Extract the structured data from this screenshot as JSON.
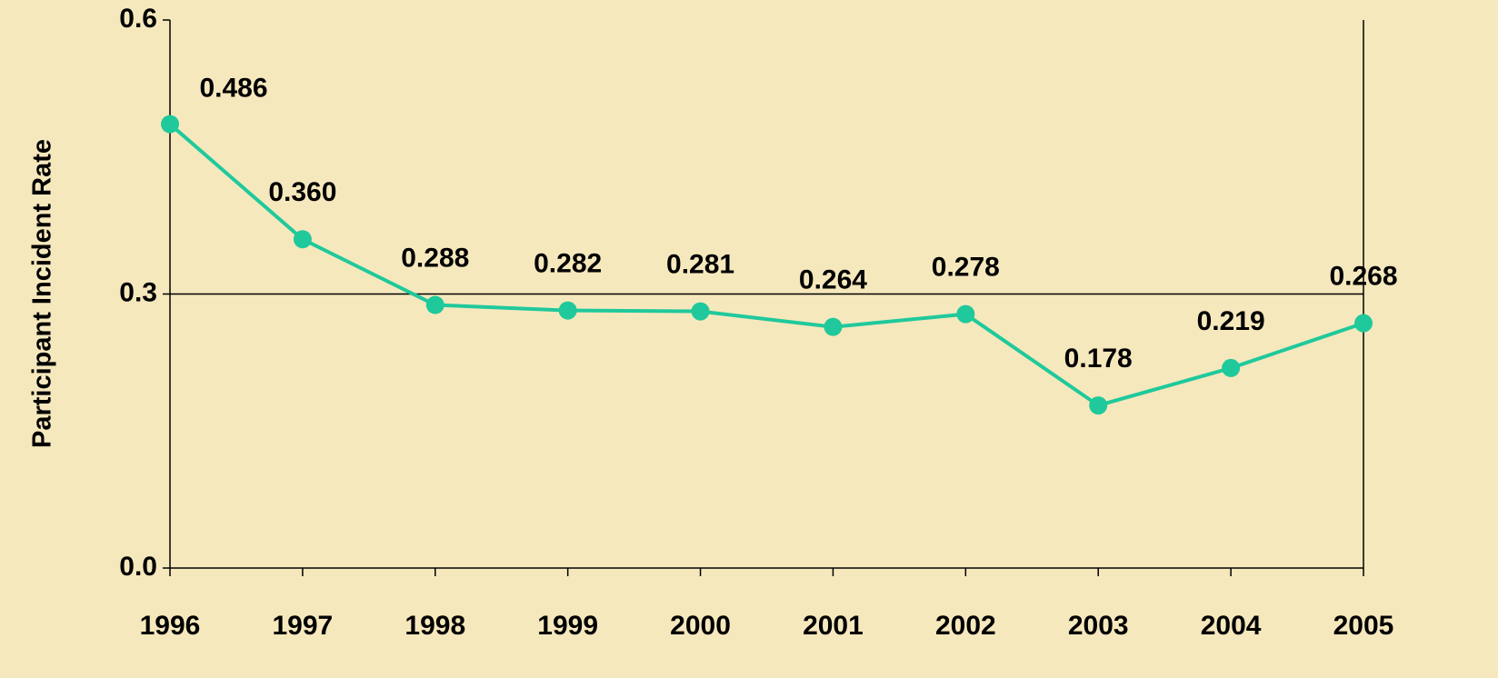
{
  "chart_data": {
    "type": "line",
    "y_label": "Participant Incident Rate",
    "categories": [
      "1996",
      "1997",
      "1998",
      "1999",
      "2000",
      "2001",
      "2002",
      "2003",
      "2004",
      "2005"
    ],
    "series": [
      {
        "name": "Participant Incident Rate",
        "color": "#1fc99b",
        "values": [
          0.486,
          0.36,
          0.288,
          0.282,
          0.281,
          0.264,
          0.278,
          0.178,
          0.219,
          0.268
        ],
        "value_labels": [
          "0.486",
          "0.360",
          "0.288",
          "0.282",
          "0.281",
          "0.264",
          "0.278",
          "0.178",
          "0.219",
          "0.268"
        ]
      }
    ],
    "ylim": [
      0,
      0.6
    ],
    "yticks": [
      {
        "value": 0,
        "label": "0.0"
      },
      0.3,
      0.6
    ],
    "grid": true
  }
}
